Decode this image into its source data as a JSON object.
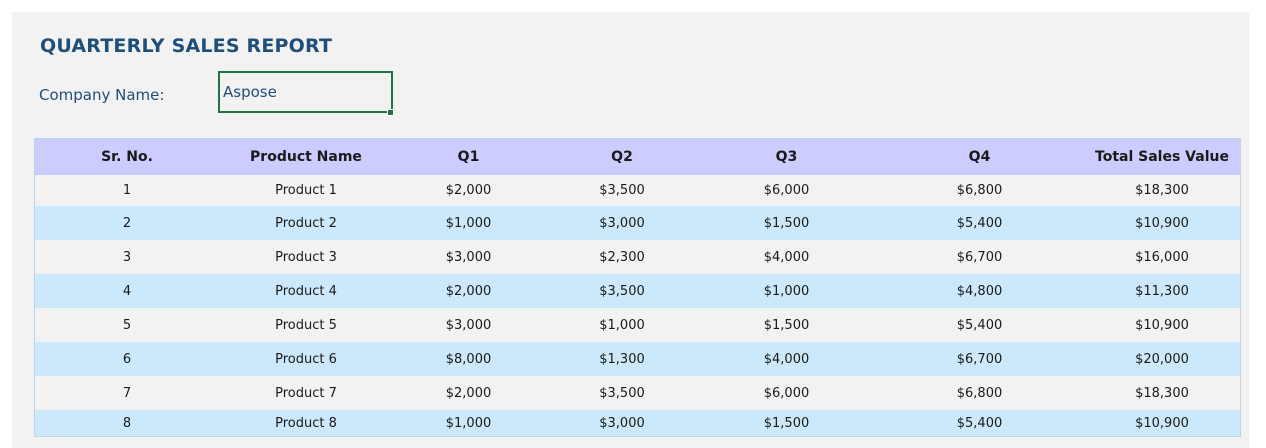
{
  "report": {
    "title": "QUARTERLY SALES REPORT",
    "company_label": "Company Name:",
    "company_value": "Aspose"
  },
  "table": {
    "headers": [
      "Sr. No.",
      "Product Name",
      "Q1",
      "Q2",
      "Q3",
      "Q4",
      "Total Sales Value"
    ],
    "rows": [
      [
        "1",
        "Product 1",
        "$2,000",
        "$3,500",
        "$6,000",
        "$6,800",
        "$18,300"
      ],
      [
        "2",
        "Product 2",
        "$1,000",
        "$3,000",
        "$1,500",
        "$5,400",
        "$10,900"
      ],
      [
        "3",
        "Product 3",
        "$3,000",
        "$2,300",
        "$4,000",
        "$6,700",
        "$16,000"
      ],
      [
        "4",
        "Product 4",
        "$2,000",
        "$3,500",
        "$1,000",
        "$4,800",
        "$11,300"
      ],
      [
        "5",
        "Product 5",
        "$3,000",
        "$1,000",
        "$1,500",
        "$5,400",
        "$10,900"
      ],
      [
        "6",
        "Product 6",
        "$8,000",
        "$1,300",
        "$4,000",
        "$6,700",
        "$20,000"
      ],
      [
        "7",
        "Product 7",
        "$2,000",
        "$3,500",
        "$6,000",
        "$6,800",
        "$18,300"
      ],
      [
        "8",
        "Product 8",
        "$1,000",
        "$3,000",
        "$1,500",
        "$5,400",
        "$10,900"
      ]
    ]
  },
  "colors": {
    "title": "#1f4e79",
    "header_fill": "#ccccff",
    "band_odd": "#f2f2f2",
    "band_even": "#cce9fb",
    "selected_cell_border": "#217346"
  }
}
